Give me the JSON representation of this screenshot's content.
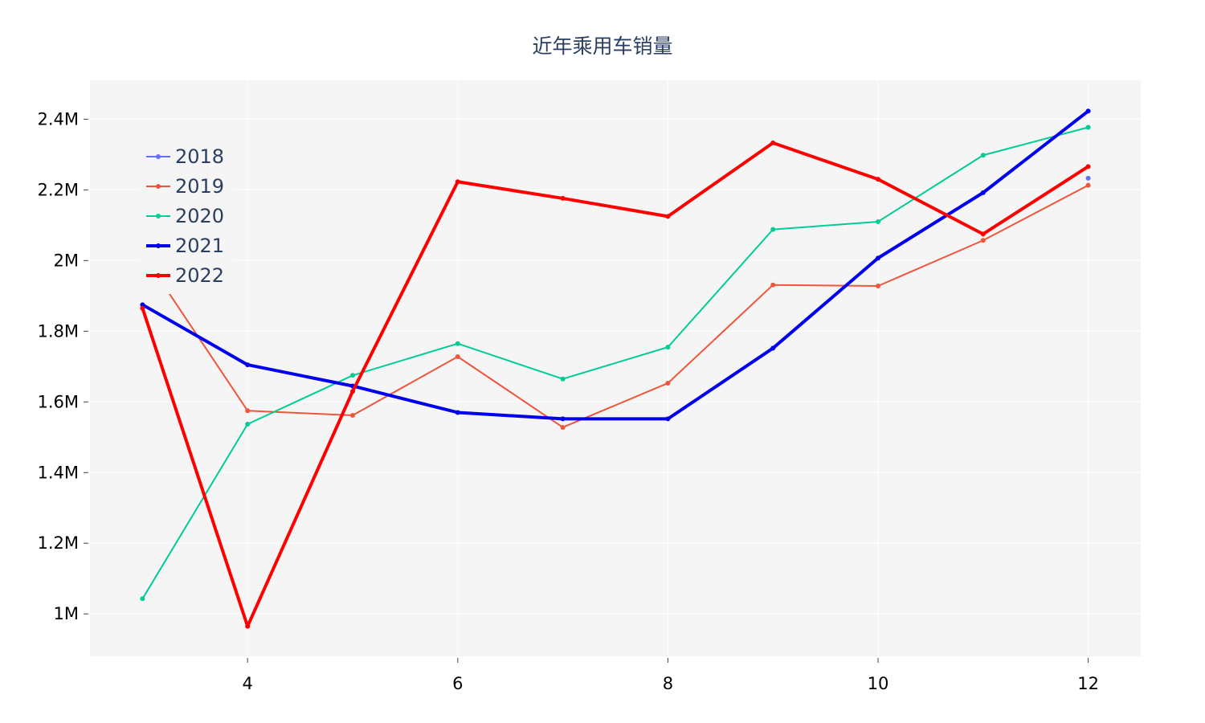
{
  "chart_data": {
    "type": "line",
    "title": "近年乘用车销量",
    "xlabel": "",
    "ylabel": "",
    "xlim": [
      2.5,
      12.5
    ],
    "ylim": [
      880000,
      2510000
    ],
    "x_ticks": [
      4,
      6,
      8,
      10,
      12
    ],
    "x_tick_labels": [
      "4",
      "6",
      "8",
      "10",
      "12"
    ],
    "y_ticks": [
      1000000,
      1200000,
      1400000,
      1600000,
      1800000,
      2000000,
      2200000,
      2400000
    ],
    "y_tick_labels": [
      "1M",
      "1.2M",
      "1.4M",
      "1.6M",
      "1.8M",
      "2M",
      "2.2M",
      "2.4M"
    ],
    "grid": true,
    "legend_position": "top-left",
    "plot_bg": "#f5f5f5",
    "series": [
      {
        "name": "2018",
        "color": "#636efa",
        "width": 2,
        "x": [
          12
        ],
        "y": [
          2233000
        ]
      },
      {
        "name": "2019",
        "color": "#ef553b",
        "width": 2,
        "x": [
          3,
          4,
          5,
          6,
          7,
          8,
          9,
          10,
          11,
          12
        ],
        "y": [
          2020000,
          1575000,
          1562000,
          1728000,
          1528000,
          1653000,
          1931000,
          1928000,
          2057000,
          2213000
        ]
      },
      {
        "name": "2020",
        "color": "#00cc96",
        "width": 2,
        "x": [
          3,
          4,
          5,
          6,
          7,
          8,
          9,
          10,
          11,
          12
        ],
        "y": [
          1043000,
          1537000,
          1675000,
          1765000,
          1665000,
          1755000,
          2088000,
          2110000,
          2298000,
          2377000
        ]
      },
      {
        "name": "2021",
        "color": "#0000ee",
        "width": 4,
        "x": [
          3,
          4,
          5,
          6,
          7,
          8,
          9,
          10,
          11,
          12
        ],
        "y": [
          1875000,
          1705000,
          1645000,
          1570000,
          1552000,
          1552000,
          1752000,
          2007000,
          2192000,
          2423000
        ]
      },
      {
        "name": "2022",
        "color": "#ff0000",
        "width": 4,
        "x": [
          3,
          4,
          5,
          6,
          7,
          8,
          9,
          10,
          11,
          12
        ],
        "y": [
          1865000,
          965000,
          1630000,
          2223000,
          2176000,
          2125000,
          2333000,
          2230000,
          2075000,
          2266000
        ]
      }
    ]
  }
}
